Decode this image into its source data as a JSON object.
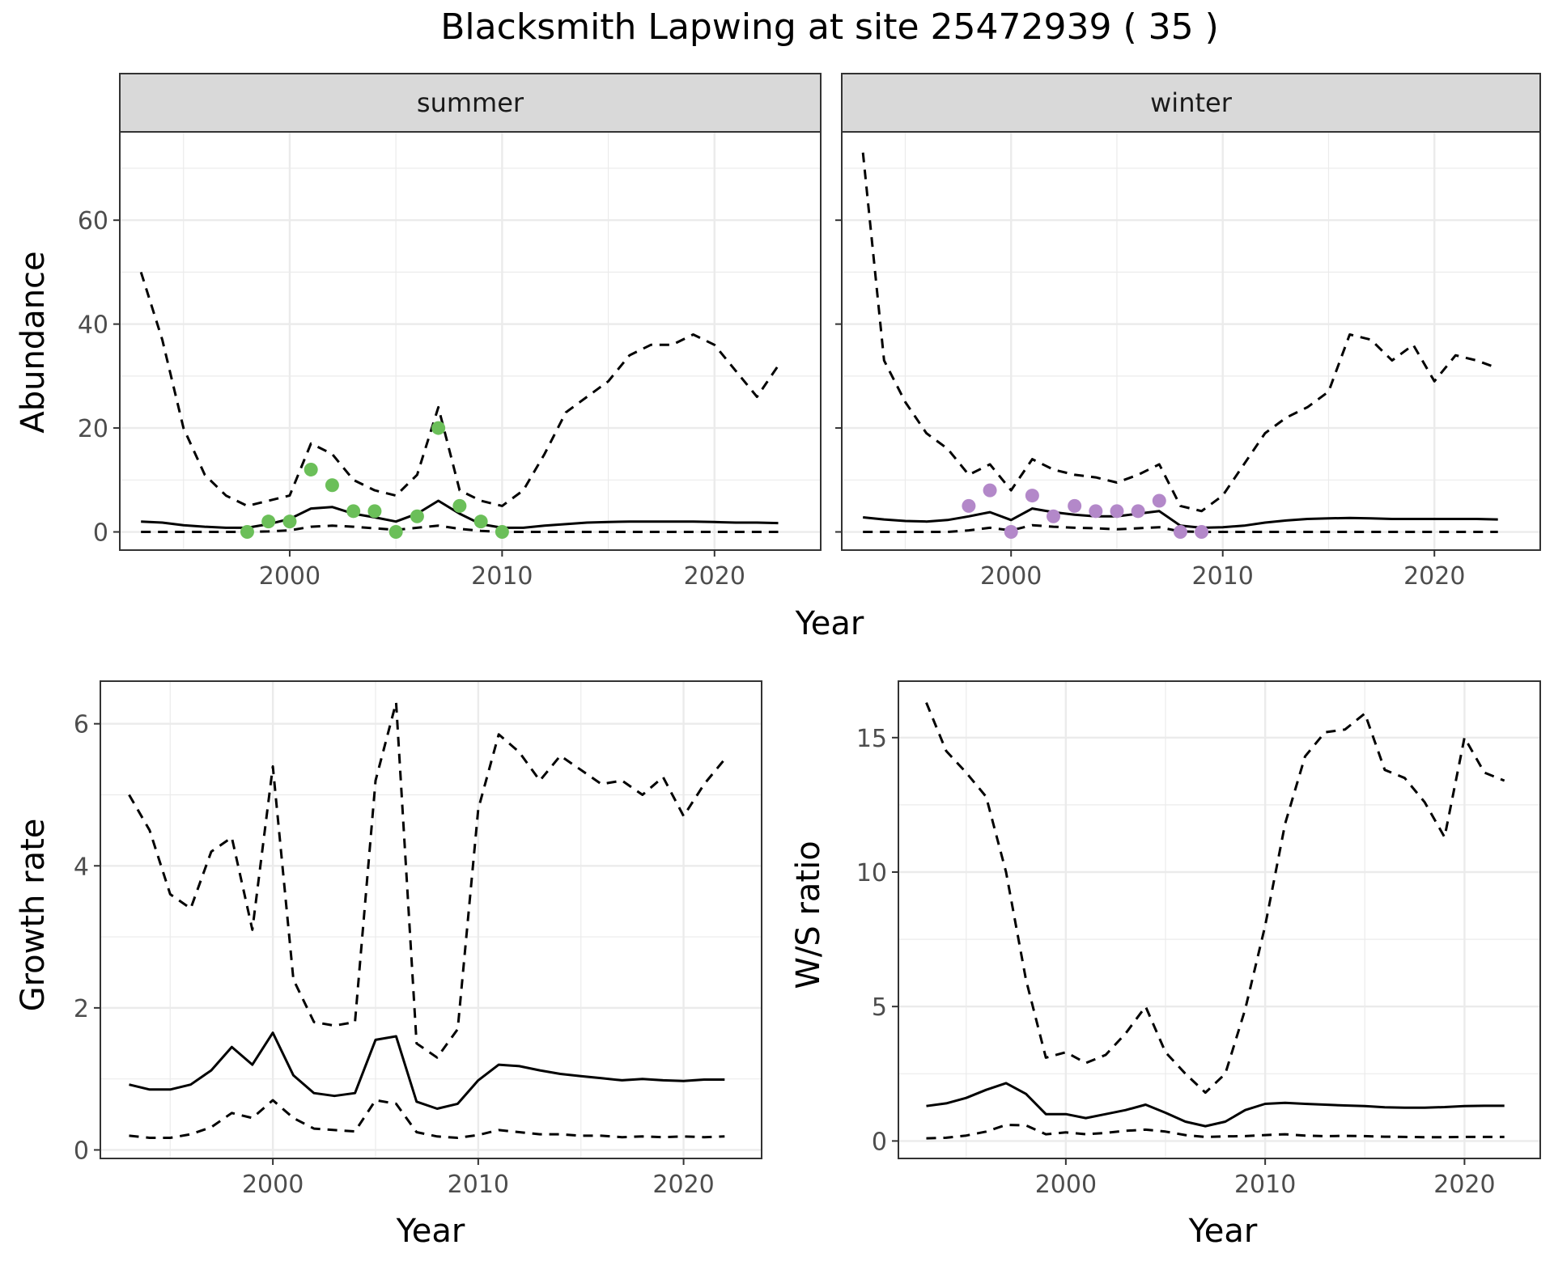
{
  "title": "Blacksmith Lapwing at site 25472939 ( 35 )",
  "colors": {
    "summer_points": "#6BBF59",
    "winter_points": "#B388C9",
    "line": "#000000",
    "strip_fill": "#D9D9D9",
    "grid": "#EBEBEB"
  },
  "chart_data": [
    {
      "type": "line",
      "panel": "summer",
      "strip_label": "summer",
      "xlabel": "Year",
      "ylabel": "Abundance",
      "xlim": [
        1992,
        2025
      ],
      "ylim": [
        -3.5,
        77
      ],
      "xticks": [
        2000,
        2010,
        2020
      ],
      "yticks": [
        0,
        20,
        40,
        60
      ],
      "grid": true,
      "x": [
        1993,
        1994,
        1995,
        1996,
        1997,
        1998,
        1999,
        2000,
        2001,
        2002,
        2003,
        2004,
        2005,
        2006,
        2007,
        2008,
        2009,
        2010,
        2011,
        2012,
        2013,
        2014,
        2015,
        2016,
        2017,
        2018,
        2019,
        2020,
        2021,
        2022,
        2023
      ],
      "series": [
        {
          "role": "upper",
          "style": "dashed",
          "values": [
            50,
            37,
            20,
            11,
            7,
            5,
            6,
            7,
            17,
            15,
            10,
            8,
            7,
            11,
            24,
            8,
            6,
            5,
            8,
            15,
            23,
            26,
            29,
            34,
            36,
            36,
            38,
            36,
            31,
            26,
            32
          ]
        },
        {
          "role": "mean",
          "style": "solid",
          "values": [
            2,
            1.8,
            1.3,
            1,
            0.8,
            0.8,
            1.5,
            2.5,
            4.5,
            4.8,
            3.5,
            2.8,
            2,
            3.5,
            6,
            3.5,
            1.5,
            0.8,
            0.8,
            1.2,
            1.5,
            1.8,
            1.9,
            2,
            2,
            2,
            2,
            1.9,
            1.8,
            1.8,
            1.7
          ]
        },
        {
          "role": "lower",
          "style": "dashed",
          "values": [
            0,
            0,
            0,
            0,
            0,
            0,
            0.1,
            0.3,
            1,
            1.2,
            1,
            0.7,
            0.4,
            0.8,
            1.2,
            0.6,
            0.2,
            0,
            0,
            0,
            0,
            0,
            0,
            0,
            0,
            0,
            0,
            0,
            0,
            0,
            0
          ]
        }
      ],
      "points": {
        "x": [
          1998,
          1999,
          2000,
          2001,
          2002,
          2003,
          2004,
          2005,
          2006,
          2007,
          2008,
          2009,
          2010
        ],
        "y": [
          0,
          2,
          2,
          12,
          9,
          4,
          4,
          0,
          3,
          20,
          5,
          2,
          0
        ]
      }
    },
    {
      "type": "line",
      "panel": "winter",
      "strip_label": "winter",
      "xlabel": "Year",
      "ylabel": "Abundance",
      "xlim": [
        1992,
        2025
      ],
      "ylim": [
        -3.5,
        77
      ],
      "xticks": [
        2000,
        2010,
        2020
      ],
      "yticks": [
        0,
        20,
        40,
        60
      ],
      "grid": true,
      "x": [
        1993,
        1994,
        1995,
        1996,
        1997,
        1998,
        1999,
        2000,
        2001,
        2002,
        2003,
        2004,
        2005,
        2006,
        2007,
        2008,
        2009,
        2010,
        2011,
        2012,
        2013,
        2014,
        2015,
        2016,
        2017,
        2018,
        2019,
        2020,
        2021,
        2022,
        2023
      ],
      "series": [
        {
          "role": "upper",
          "style": "dashed",
          "values": [
            73,
            33,
            25,
            19,
            16,
            11,
            13,
            8,
            14,
            12,
            11,
            10.5,
            9.5,
            11,
            13,
            5,
            4,
            7,
            13,
            19,
            22,
            24,
            27,
            38,
            37,
            33,
            36,
            29,
            34,
            33,
            31.5
          ]
        },
        {
          "role": "mean",
          "style": "solid",
          "values": [
            2.8,
            2.4,
            2.1,
            2,
            2.3,
            3,
            3.8,
            2.3,
            4.5,
            3.8,
            3.3,
            3,
            3,
            3.5,
            4,
            1.2,
            0.8,
            0.9,
            1.2,
            1.8,
            2.2,
            2.5,
            2.6,
            2.7,
            2.6,
            2.5,
            2.5,
            2.5,
            2.5,
            2.5,
            2.4
          ]
        },
        {
          "role": "lower",
          "style": "dashed",
          "values": [
            0,
            0,
            0,
            0,
            0,
            0.3,
            0.8,
            0.3,
            1.3,
            1,
            0.8,
            0.7,
            0.5,
            0.7,
            0.9,
            0.1,
            0,
            0,
            0,
            0,
            0,
            0,
            0,
            0,
            0,
            0,
            0,
            0,
            0,
            0,
            0
          ]
        }
      ],
      "points": {
        "x": [
          1998,
          1999,
          2000,
          2001,
          2002,
          2003,
          2004,
          2005,
          2006,
          2007,
          2008,
          2009
        ],
        "y": [
          5,
          8,
          0,
          7,
          3,
          5,
          4,
          4,
          4,
          6,
          0,
          0
        ]
      }
    },
    {
      "type": "line",
      "panel": "growth",
      "xlabel": "Year",
      "ylabel": "Growth rate",
      "xlim": [
        1991.6,
        2023.8
      ],
      "ylim": [
        -0.12,
        6.6
      ],
      "xticks": [
        2000,
        2010,
        2020
      ],
      "yticks": [
        0,
        2,
        4,
        6
      ],
      "grid": true,
      "x": [
        1993,
        1994,
        1995,
        1996,
        1997,
        1998,
        1999,
        2000,
        2001,
        2002,
        2003,
        2004,
        2005,
        2006,
        2007,
        2008,
        2009,
        2010,
        2011,
        2012,
        2013,
        2014,
        2015,
        2016,
        2017,
        2018,
        2019,
        2020,
        2021,
        2022
      ],
      "series": [
        {
          "role": "upper",
          "style": "dashed",
          "values": [
            5,
            4.5,
            3.6,
            3.4,
            4.2,
            4.4,
            3.1,
            5.4,
            2.4,
            1.8,
            1.75,
            1.8,
            5.2,
            6.3,
            1.5,
            1.3,
            1.7,
            4.8,
            5.85,
            5.6,
            5.2,
            5.55,
            5.35,
            5.15,
            5.2,
            5,
            5.25,
            4.7,
            5.15,
            5.5
          ]
        },
        {
          "role": "mean",
          "style": "solid",
          "values": [
            0.92,
            0.85,
            0.85,
            0.92,
            1.12,
            1.45,
            1.2,
            1.65,
            1.05,
            0.8,
            0.76,
            0.8,
            1.55,
            1.6,
            0.68,
            0.58,
            0.65,
            0.98,
            1.2,
            1.18,
            1.12,
            1.07,
            1.04,
            1.01,
            0.98,
            1,
            0.98,
            0.97,
            0.99,
            0.99
          ]
        },
        {
          "role": "lower",
          "style": "dashed",
          "values": [
            0.2,
            0.17,
            0.17,
            0.22,
            0.32,
            0.52,
            0.45,
            0.7,
            0.45,
            0.3,
            0.28,
            0.26,
            0.7,
            0.65,
            0.25,
            0.19,
            0.17,
            0.21,
            0.28,
            0.25,
            0.22,
            0.22,
            0.2,
            0.2,
            0.18,
            0.19,
            0.18,
            0.19,
            0.18,
            0.19
          ]
        }
      ]
    },
    {
      "type": "line",
      "panel": "ratio",
      "xlabel": "Year",
      "ylabel": "W/S ratio",
      "xlim": [
        1991.6,
        2023.8
      ],
      "ylim": [
        -0.65,
        17.1
      ],
      "xticks": [
        2000,
        2010,
        2020
      ],
      "yticks": [
        0,
        5,
        10,
        15
      ],
      "grid": true,
      "x": [
        1993,
        1994,
        1995,
        1996,
        1997,
        1998,
        1999,
        2000,
        2001,
        2002,
        2003,
        2004,
        2005,
        2006,
        2007,
        2008,
        2009,
        2010,
        2011,
        2012,
        2013,
        2014,
        2015,
        2016,
        2017,
        2018,
        2019,
        2020,
        2021,
        2022
      ],
      "series": [
        {
          "role": "upper",
          "style": "dashed",
          "values": [
            16.3,
            14.5,
            13.7,
            12.8,
            10,
            6,
            3.1,
            3.3,
            2.9,
            3.2,
            4,
            5,
            3.3,
            2.5,
            1.8,
            2.5,
            4.9,
            8,
            11.8,
            14.3,
            15.2,
            15.3,
            15.9,
            13.8,
            13.5,
            12.6,
            11.3,
            15,
            13.7,
            13.4
          ]
        },
        {
          "role": "mean",
          "style": "solid",
          "values": [
            1.3,
            1.4,
            1.6,
            1.9,
            2.15,
            1.75,
            1,
            1,
            0.85,
            1,
            1.15,
            1.35,
            1.05,
            0.72,
            0.55,
            0.72,
            1.15,
            1.38,
            1.42,
            1.38,
            1.35,
            1.32,
            1.3,
            1.25,
            1.24,
            1.24,
            1.26,
            1.3,
            1.31,
            1.31
          ]
        },
        {
          "role": "lower",
          "style": "dashed",
          "values": [
            0.1,
            0.12,
            0.2,
            0.35,
            0.6,
            0.58,
            0.25,
            0.32,
            0.25,
            0.3,
            0.38,
            0.42,
            0.35,
            0.22,
            0.15,
            0.17,
            0.18,
            0.22,
            0.25,
            0.2,
            0.18,
            0.19,
            0.18,
            0.16,
            0.15,
            0.14,
            0.14,
            0.15,
            0.15,
            0.15
          ]
        }
      ]
    }
  ]
}
